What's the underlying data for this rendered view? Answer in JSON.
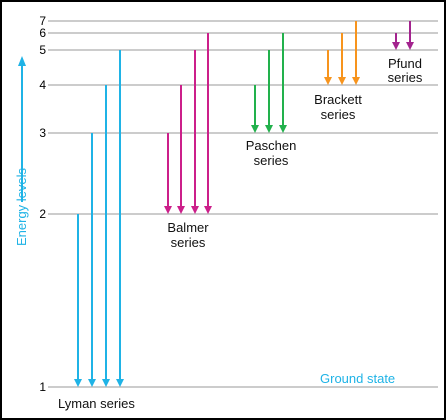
{
  "axis_label": "Energy levels",
  "ground_label": "Ground state",
  "levels": [
    {
      "n": 1,
      "label": "1"
    },
    {
      "n": 2,
      "label": "2"
    },
    {
      "n": 3,
      "label": "3"
    },
    {
      "n": 4,
      "label": "4"
    },
    {
      "n": 5,
      "label": "5"
    },
    {
      "n": 6,
      "label": "6"
    },
    {
      "n": 7,
      "label": "7"
    }
  ],
  "series": [
    {
      "name": "Lyman",
      "label_lines": [
        "Lyman series"
      ],
      "color": "#1fb3e6",
      "lower": 1,
      "uppers": [
        2,
        3,
        4,
        5
      ]
    },
    {
      "name": "Balmer",
      "label_lines": [
        "Balmer",
        "series"
      ],
      "color": "#cc1f8a",
      "lower": 2,
      "uppers": [
        3,
        4,
        5,
        6
      ]
    },
    {
      "name": "Paschen",
      "label_lines": [
        "Paschen",
        "series"
      ],
      "color": "#22b14c",
      "lower": 3,
      "uppers": [
        4,
        5,
        6
      ]
    },
    {
      "name": "Brackett",
      "label_lines": [
        "Brackett",
        "series"
      ],
      "color": "#f7941d",
      "lower": 4,
      "uppers": [
        5,
        6,
        7
      ]
    },
    {
      "name": "Pfund",
      "label_lines": [
        "Pfund",
        "series"
      ],
      "color": "#a3238e",
      "lower": 5,
      "uppers": [
        6,
        7
      ]
    }
  ],
  "colors": {
    "level_line": "#999999",
    "axis_arrow": "#1fb3e6"
  }
}
